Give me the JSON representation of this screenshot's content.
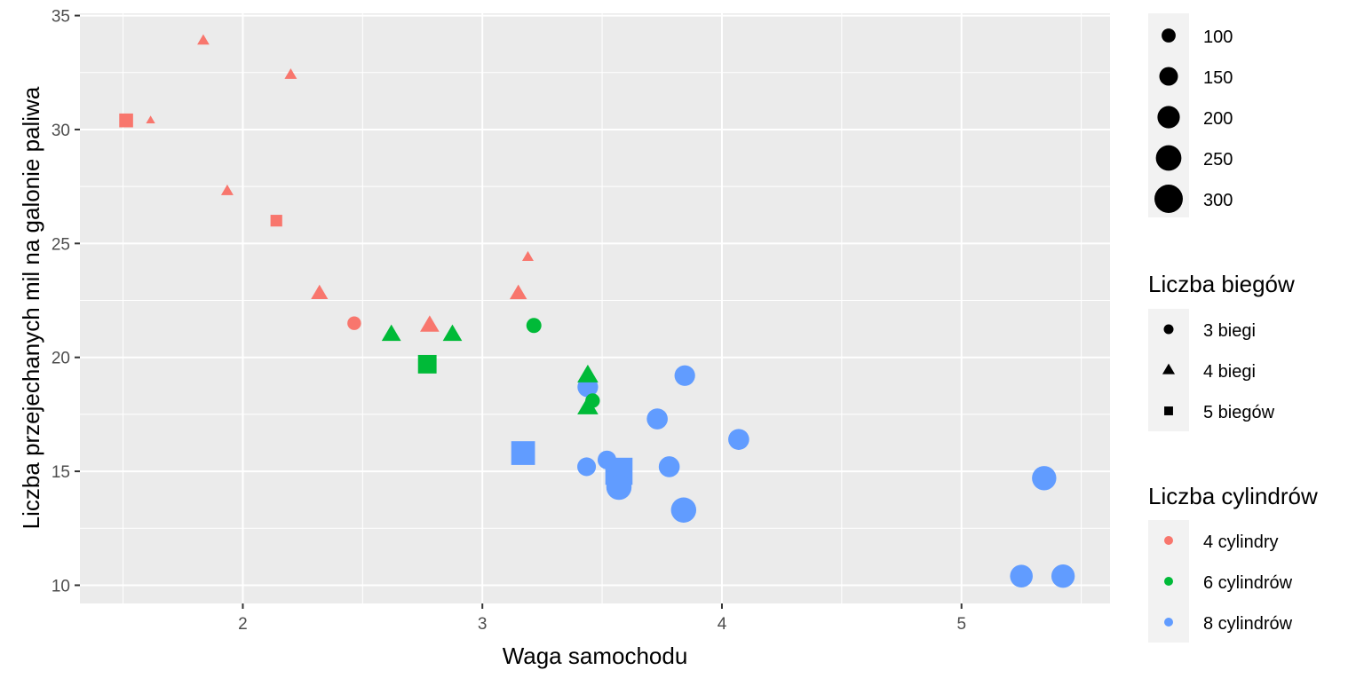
{
  "chart_data": {
    "type": "scatter",
    "title": "",
    "xlabel": "Waga samochodu",
    "ylabel": "Liczba przejechanych mil na galonie paliwa",
    "xlim": [
      1.32,
      5.62
    ],
    "ylim": [
      9.2,
      35.1
    ],
    "x_ticks": [
      2,
      3,
      4,
      5
    ],
    "y_ticks": [
      10,
      15,
      20,
      25,
      30,
      35
    ],
    "grid": true,
    "legend_position": "right",
    "colors": {
      "4": "#F8766D",
      "6": "#00BA38",
      "8": "#619CFF"
    },
    "size_legend": {
      "title": "",
      "entries": [
        {
          "value": 100,
          "label": "100"
        },
        {
          "value": 150,
          "label": "150"
        },
        {
          "value": 200,
          "label": "200"
        },
        {
          "value": 250,
          "label": "250"
        },
        {
          "value": 300,
          "label": "300"
        }
      ]
    },
    "shape_legend": {
      "title": "Liczba biegów",
      "entries": [
        {
          "gear": 3,
          "label": "3 biegi",
          "shape": "circle"
        },
        {
          "gear": 4,
          "label": "4 biegi",
          "shape": "triangle"
        },
        {
          "gear": 5,
          "label": "5 biegów",
          "shape": "square"
        }
      ]
    },
    "color_legend": {
      "title": "Liczba cylindrów",
      "entries": [
        {
          "cyl": 4,
          "label": "4 cylindry",
          "color": "#F8766D"
        },
        {
          "cyl": 6,
          "label": "6 cylindrów",
          "color": "#00BA38"
        },
        {
          "cyl": 8,
          "label": "8 cylindrów",
          "color": "#619CFF"
        }
      ]
    },
    "points": [
      {
        "x": 2.62,
        "y": 21.0,
        "cyl": 6,
        "gear": 4,
        "hp": 110
      },
      {
        "x": 2.875,
        "y": 21.0,
        "cyl": 6,
        "gear": 4,
        "hp": 110
      },
      {
        "x": 2.32,
        "y": 22.8,
        "cyl": 4,
        "gear": 4,
        "hp": 93
      },
      {
        "x": 3.215,
        "y": 21.4,
        "cyl": 6,
        "gear": 3,
        "hp": 110
      },
      {
        "x": 3.44,
        "y": 18.7,
        "cyl": 8,
        "gear": 3,
        "hp": 175
      },
      {
        "x": 3.46,
        "y": 18.1,
        "cyl": 6,
        "gear": 3,
        "hp": 105
      },
      {
        "x": 3.57,
        "y": 14.3,
        "cyl": 8,
        "gear": 3,
        "hp": 245
      },
      {
        "x": 3.19,
        "y": 24.4,
        "cyl": 4,
        "gear": 4,
        "hp": 62
      },
      {
        "x": 3.15,
        "y": 22.8,
        "cyl": 4,
        "gear": 4,
        "hp": 95
      },
      {
        "x": 3.44,
        "y": 19.2,
        "cyl": 6,
        "gear": 4,
        "hp": 123
      },
      {
        "x": 3.44,
        "y": 17.8,
        "cyl": 6,
        "gear": 4,
        "hp": 123
      },
      {
        "x": 4.07,
        "y": 16.4,
        "cyl": 8,
        "gear": 3,
        "hp": 180
      },
      {
        "x": 3.73,
        "y": 17.3,
        "cyl": 8,
        "gear": 3,
        "hp": 180
      },
      {
        "x": 3.78,
        "y": 15.2,
        "cyl": 8,
        "gear": 3,
        "hp": 180
      },
      {
        "x": 5.25,
        "y": 10.4,
        "cyl": 8,
        "gear": 3,
        "hp": 205
      },
      {
        "x": 5.424,
        "y": 10.4,
        "cyl": 8,
        "gear": 3,
        "hp": 215
      },
      {
        "x": 5.345,
        "y": 14.7,
        "cyl": 8,
        "gear": 3,
        "hp": 230
      },
      {
        "x": 2.2,
        "y": 32.4,
        "cyl": 4,
        "gear": 4,
        "hp": 66
      },
      {
        "x": 1.615,
        "y": 30.4,
        "cyl": 4,
        "gear": 4,
        "hp": 52
      },
      {
        "x": 1.835,
        "y": 33.9,
        "cyl": 4,
        "gear": 4,
        "hp": 65
      },
      {
        "x": 2.465,
        "y": 21.5,
        "cyl": 4,
        "gear": 3,
        "hp": 97
      },
      {
        "x": 3.52,
        "y": 15.5,
        "cyl": 8,
        "gear": 3,
        "hp": 150
      },
      {
        "x": 3.435,
        "y": 15.2,
        "cyl": 8,
        "gear": 3,
        "hp": 150
      },
      {
        "x": 3.84,
        "y": 13.3,
        "cyl": 8,
        "gear": 3,
        "hp": 245
      },
      {
        "x": 3.845,
        "y": 19.2,
        "cyl": 8,
        "gear": 3,
        "hp": 175
      },
      {
        "x": 1.935,
        "y": 27.3,
        "cyl": 4,
        "gear": 4,
        "hp": 66
      },
      {
        "x": 2.14,
        "y": 26.0,
        "cyl": 4,
        "gear": 5,
        "hp": 91
      },
      {
        "x": 1.513,
        "y": 30.4,
        "cyl": 4,
        "gear": 5,
        "hp": 113
      },
      {
        "x": 3.17,
        "y": 15.8,
        "cyl": 8,
        "gear": 5,
        "hp": 264
      },
      {
        "x": 2.77,
        "y": 19.7,
        "cyl": 6,
        "gear": 5,
        "hp": 175
      },
      {
        "x": 3.57,
        "y": 15.0,
        "cyl": 8,
        "gear": 5,
        "hp": 335
      },
      {
        "x": 2.78,
        "y": 21.4,
        "cyl": 4,
        "gear": 4,
        "hp": 109
      }
    ]
  }
}
